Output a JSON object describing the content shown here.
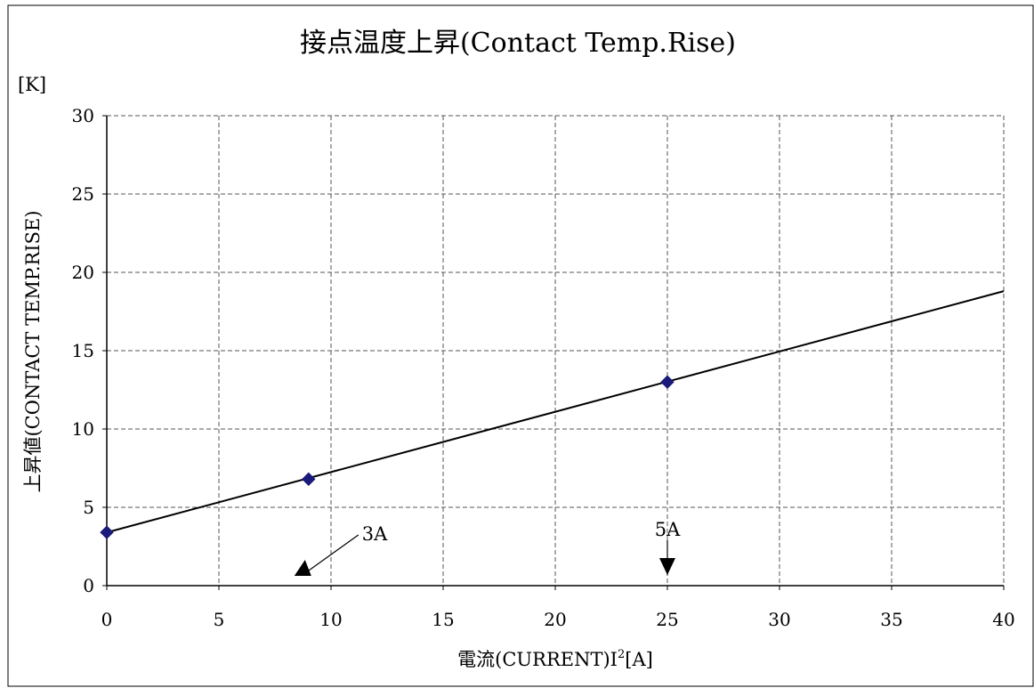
{
  "chart_data": {
    "type": "line",
    "title": "接点温度上昇(Contact Temp.Rise)",
    "y_unit": "[K]",
    "xlabel": "電流(CURRENT)I",
    "xlabel_sup": "2",
    "xlabel_unit": "[A]",
    "ylabel": "上昇値(CONTACT TEMP.RISE)",
    "xlim": [
      0,
      40
    ],
    "ylim": [
      0,
      30
    ],
    "x_ticks": [
      0,
      5,
      10,
      15,
      20,
      25,
      30,
      35,
      40
    ],
    "y_ticks": [
      0,
      5,
      10,
      15,
      20,
      25,
      30
    ],
    "grid": true,
    "series": [
      {
        "markers": [
          {
            "x": 0,
            "y": 3.4
          },
          {
            "x": 9,
            "y": 6.8
          },
          {
            "x": 25,
            "y": 13.0
          }
        ],
        "fit_line": [
          {
            "x": 0,
            "y": 3.4
          },
          {
            "x": 40,
            "y": 18.8
          }
        ]
      }
    ],
    "annotations": [
      {
        "label": "3A",
        "x": 9,
        "y": 0
      },
      {
        "label": "5A",
        "x": 25,
        "y": 0
      }
    ],
    "colors": {
      "marker": "#1a1a7a",
      "line": "#000000",
      "grid": "#555555"
    }
  }
}
